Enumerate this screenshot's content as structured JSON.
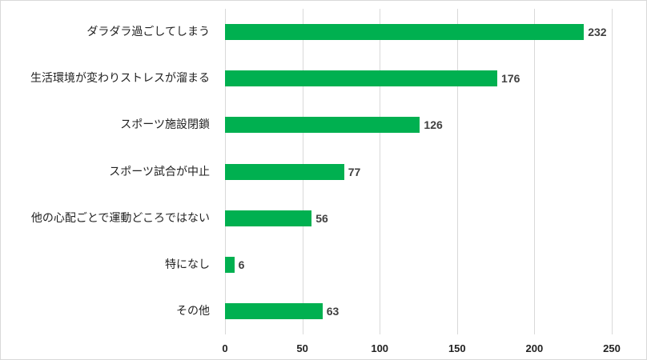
{
  "chart_data": {
    "type": "bar",
    "orientation": "horizontal",
    "title": "",
    "xlabel": "",
    "ylabel": "",
    "categories": [
      "ダラダラ過ごしてしまう",
      "生活環境が変わりストレスが溜まる",
      "スポーツ施設閉鎖",
      "スポーツ試合が中止",
      "他の心配ごとで運動どころではない",
      "特になし",
      "その他"
    ],
    "values": [
      232,
      176,
      126,
      77,
      56,
      6,
      63
    ],
    "xlim": [
      0,
      250
    ],
    "xticks": [
      "0",
      "50",
      "100",
      "150",
      "200",
      "250"
    ],
    "grid": "vertical",
    "legend": "none",
    "bar_color": "#00b050",
    "data_labels": true
  }
}
